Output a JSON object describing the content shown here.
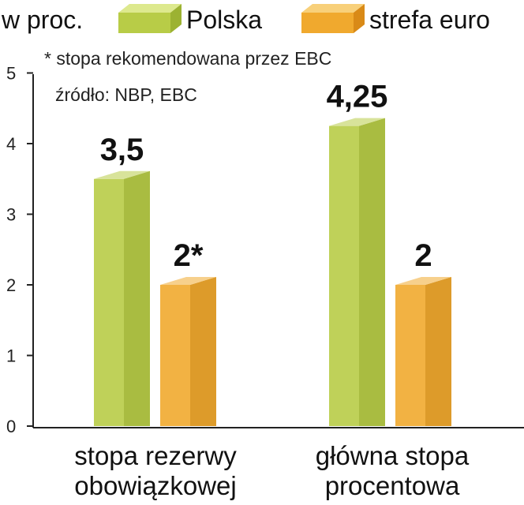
{
  "chart_data": {
    "type": "bar",
    "unit_label": "w proc.",
    "categories": [
      [
        "stopa rezerwy",
        "obowiązkowej"
      ],
      [
        "główna stopa",
        "procentowa"
      ]
    ],
    "series": [
      {
        "name": "Polska",
        "values": [
          3.5,
          4.25
        ],
        "value_labels": [
          "3,5",
          "4,25"
        ],
        "color": "#b8cc47"
      },
      {
        "name": "strefa euro",
        "values": [
          2,
          2
        ],
        "value_labels": [
          "2*",
          "2"
        ],
        "color": "#f0a92e"
      }
    ],
    "yticks": [
      0,
      1,
      2,
      3,
      4,
      5
    ],
    "ylim": [
      0,
      5
    ],
    "grid": false,
    "legend_position": "top",
    "notes": [
      "* stopa rekomendowana przez EBC",
      "źródło: NBP, EBC"
    ]
  }
}
